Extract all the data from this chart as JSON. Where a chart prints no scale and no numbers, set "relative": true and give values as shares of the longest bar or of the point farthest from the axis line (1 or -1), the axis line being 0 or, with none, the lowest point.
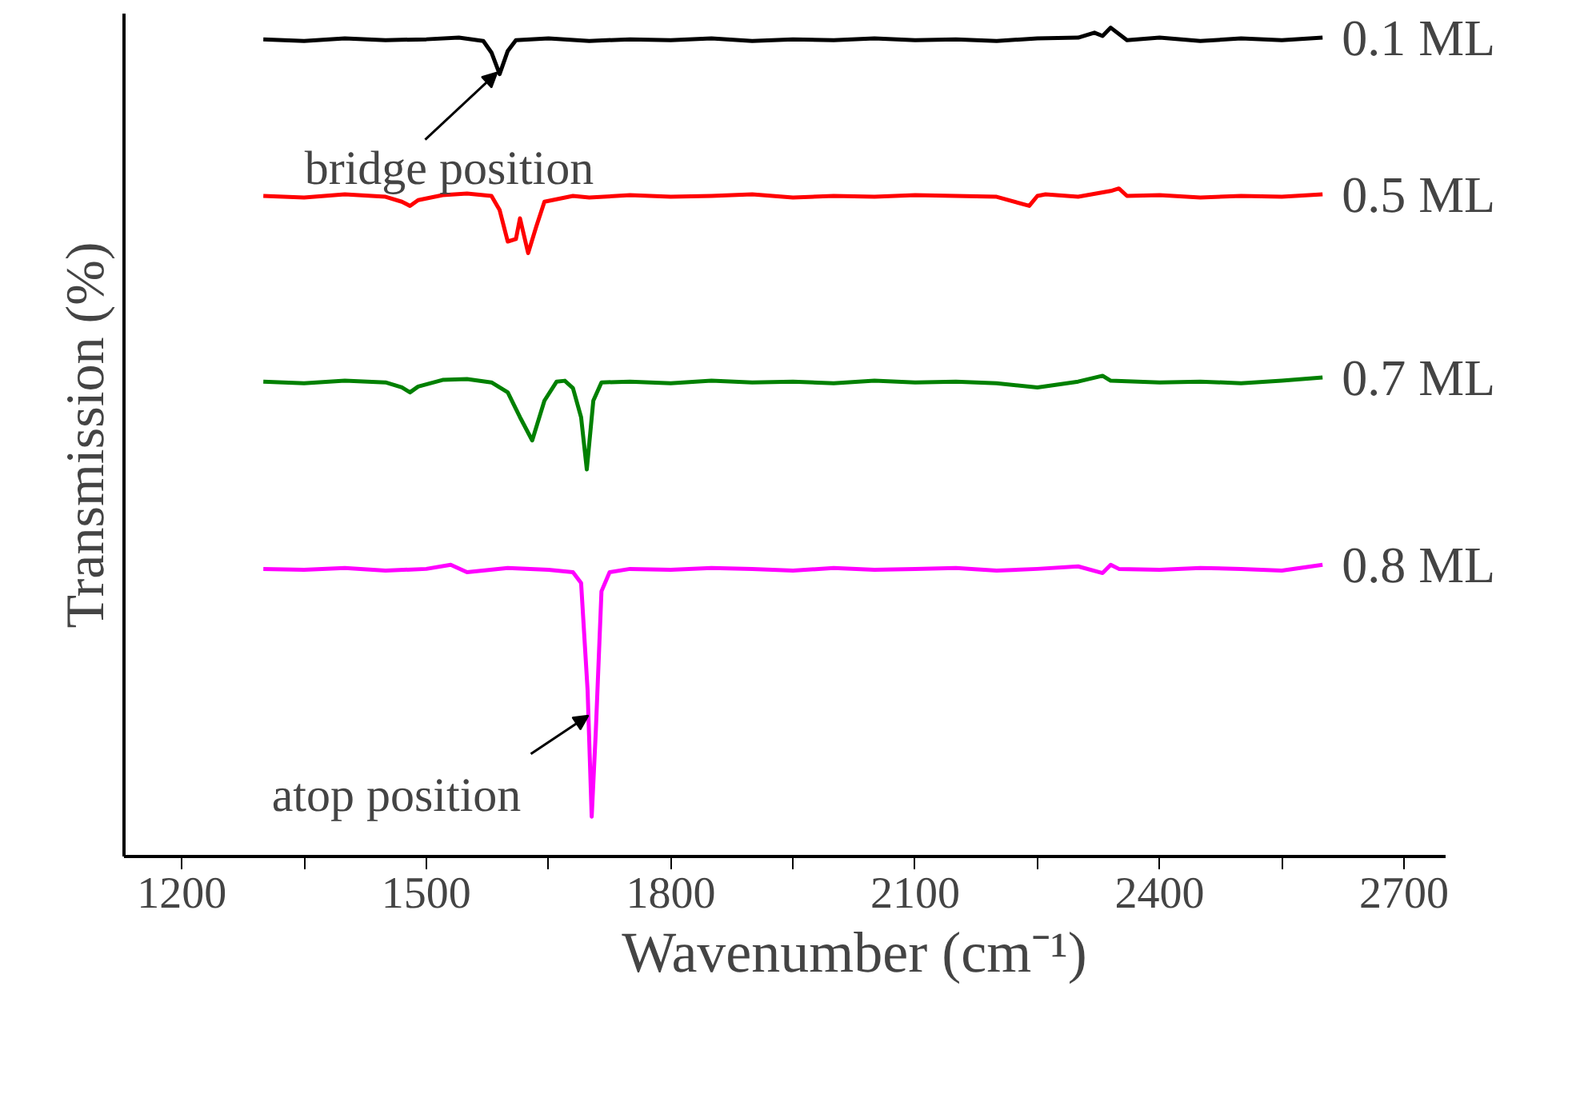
{
  "chart_data": {
    "type": "line",
    "relative": true,
    "xlabel": "Wavenumber (cm⁻¹)",
    "ylabel": "Transmission (%)",
    "xlim": [
      1129,
      2751
    ],
    "xticks": [
      1200,
      {
        "value": 1350,
        "label": null
      },
      1500,
      {
        "value": 1650,
        "label": null
      },
      1800,
      {
        "value": 1950,
        "label": null
      },
      2100,
      {
        "value": 2250,
        "label": null
      },
      2400,
      {
        "value": 2550,
        "label": null
      },
      2700
    ],
    "grid": false,
    "legend": false,
    "marker": "none",
    "line_style": "solid",
    "annotations": [
      {
        "text": "bridge position",
        "x": 1587,
        "y": 0.946
      },
      {
        "text": "atop position",
        "x": 1699,
        "y": 0.17
      }
    ],
    "series": [
      {
        "name": "0.1 ML",
        "color": "#000000",
        "x": [
          1300,
          1350,
          1400,
          1450,
          1500,
          1540,
          1570,
          1580,
          1590,
          1600,
          1610,
          1650,
          1700,
          1750,
          1800,
          1850,
          1900,
          1950,
          2000,
          2050,
          2100,
          2150,
          2200,
          2250,
          2300,
          2320,
          2330,
          2340,
          2360,
          2400,
          2450,
          2500,
          2550,
          2600
        ],
        "values": [
          0.986,
          0.984,
          0.987,
          0.985,
          0.986,
          0.988,
          0.984,
          0.97,
          0.944,
          0.972,
          0.985,
          0.987,
          0.984,
          0.986,
          0.985,
          0.987,
          0.984,
          0.986,
          0.985,
          0.987,
          0.985,
          0.986,
          0.984,
          0.987,
          0.988,
          0.994,
          0.99,
          1.0,
          0.985,
          0.988,
          0.984,
          0.987,
          0.985,
          0.988
        ]
      },
      {
        "name": "0.5 ML",
        "color": "#ff0000",
        "x": [
          1300,
          1350,
          1400,
          1450,
          1470,
          1480,
          1490,
          1520,
          1550,
          1580,
          1590,
          1600,
          1610,
          1615,
          1625,
          1635,
          1645,
          1680,
          1700,
          1750,
          1800,
          1850,
          1900,
          1950,
          2000,
          2050,
          2100,
          2150,
          2200,
          2240,
          2250,
          2260,
          2300,
          2340,
          2350,
          2360,
          2400,
          2450,
          2500,
          2550,
          2600
        ],
        "values": [
          0.797,
          0.795,
          0.799,
          0.796,
          0.79,
          0.785,
          0.792,
          0.798,
          0.8,
          0.797,
          0.78,
          0.742,
          0.745,
          0.77,
          0.728,
          0.76,
          0.79,
          0.797,
          0.795,
          0.798,
          0.796,
          0.797,
          0.799,
          0.795,
          0.797,
          0.796,
          0.798,
          0.797,
          0.796,
          0.785,
          0.797,
          0.799,
          0.796,
          0.803,
          0.806,
          0.797,
          0.798,
          0.795,
          0.797,
          0.796,
          0.799
        ]
      },
      {
        "name": "0.7 ML",
        "color": "#008000",
        "x": [
          1300,
          1350,
          1400,
          1450,
          1470,
          1480,
          1490,
          1520,
          1550,
          1580,
          1600,
          1615,
          1630,
          1645,
          1660,
          1670,
          1680,
          1690,
          1697,
          1705,
          1715,
          1750,
          1800,
          1850,
          1900,
          1950,
          2000,
          2050,
          2100,
          2150,
          2200,
          2250,
          2300,
          2330,
          2340,
          2400,
          2450,
          2500,
          2550,
          2600
        ],
        "values": [
          0.573,
          0.571,
          0.574,
          0.572,
          0.566,
          0.56,
          0.567,
          0.575,
          0.576,
          0.572,
          0.56,
          0.53,
          0.502,
          0.55,
          0.573,
          0.574,
          0.565,
          0.53,
          0.467,
          0.55,
          0.572,
          0.573,
          0.571,
          0.574,
          0.572,
          0.573,
          0.571,
          0.574,
          0.572,
          0.573,
          0.571,
          0.566,
          0.573,
          0.58,
          0.574,
          0.572,
          0.573,
          0.571,
          0.574,
          0.578
        ]
      },
      {
        "name": "0.8 ML",
        "color": "#ff00ff",
        "x": [
          1300,
          1350,
          1400,
          1450,
          1500,
          1530,
          1550,
          1600,
          1650,
          1680,
          1690,
          1698,
          1703,
          1708,
          1715,
          1725,
          1750,
          1800,
          1850,
          1900,
          1950,
          2000,
          2050,
          2100,
          2150,
          2200,
          2250,
          2300,
          2330,
          2340,
          2350,
          2400,
          2450,
          2500,
          2550,
          2600
        ],
        "values": [
          0.347,
          0.346,
          0.348,
          0.345,
          0.347,
          0.352,
          0.343,
          0.348,
          0.346,
          0.343,
          0.33,
          0.2,
          0.048,
          0.15,
          0.32,
          0.343,
          0.347,
          0.346,
          0.348,
          0.347,
          0.345,
          0.348,
          0.346,
          0.347,
          0.348,
          0.345,
          0.347,
          0.35,
          0.342,
          0.352,
          0.347,
          0.346,
          0.348,
          0.347,
          0.345,
          0.352
        ]
      }
    ]
  }
}
